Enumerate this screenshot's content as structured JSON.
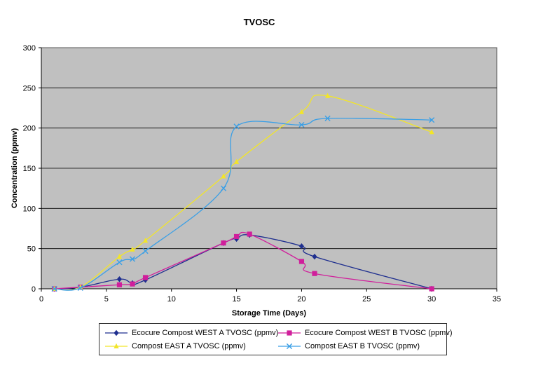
{
  "chart_data": {
    "type": "line",
    "title": "TVOSC",
    "xlabel": "Storage Time (Days)",
    "ylabel": "Concentration (ppmv)",
    "xlim": [
      0,
      35
    ],
    "ylim": [
      0,
      300
    ],
    "xticks": [
      0,
      5,
      10,
      15,
      20,
      25,
      30,
      35
    ],
    "yticks": [
      0,
      50,
      100,
      150,
      200,
      250,
      300
    ],
    "grid": "horizontal",
    "legend_position": "bottom",
    "plot_background": "#c0c0c0",
    "series": [
      {
        "name": "Ecocure Compost WEST A TVOSC (ppmv)",
        "color": "#1f2f8f",
        "marker": "diamond",
        "x": [
          1,
          3,
          6,
          7,
          8,
          14,
          15,
          16,
          20,
          21,
          30
        ],
        "y": [
          0,
          2,
          12,
          7,
          11,
          57,
          62,
          67,
          53,
          40,
          0
        ]
      },
      {
        "name": "Ecocure Compost WEST B TVOSC (ppmv)",
        "color": "#d01f9b",
        "marker": "square",
        "x": [
          1,
          3,
          6,
          7,
          8,
          14,
          15,
          16,
          20,
          21,
          30
        ],
        "y": [
          0,
          2,
          5,
          6,
          14,
          57,
          65,
          68,
          34,
          19,
          0
        ]
      },
      {
        "name": "Compost EAST A TVOSC (ppmv)",
        "color": "#f2e529",
        "marker": "triangle",
        "x": [
          1,
          3,
          6,
          7,
          8,
          14,
          15,
          20,
          22,
          30
        ],
        "y": [
          0,
          2,
          40,
          49,
          60,
          140,
          158,
          220,
          240,
          195
        ]
      },
      {
        "name": "Compost EAST B TVOSC (ppmv)",
        "color": "#3a9fe6",
        "marker": "x",
        "x": [
          1,
          3,
          6,
          7,
          8,
          14,
          15,
          20,
          22,
          30
        ],
        "y": [
          0,
          1,
          33,
          37,
          47,
          125,
          202,
          204,
          212,
          210
        ]
      }
    ]
  }
}
